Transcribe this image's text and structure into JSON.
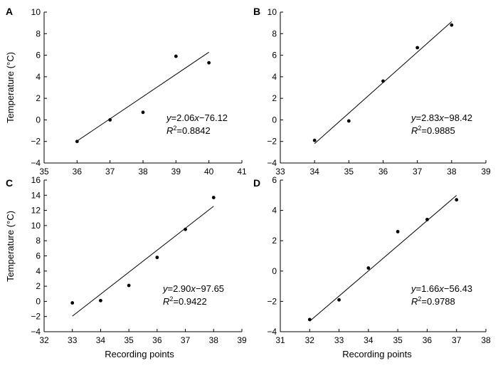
{
  "figure": {
    "ylabel": "Temperature (°C)",
    "xlabel": "Recording points"
  },
  "chart_data": [
    {
      "type": "scatter",
      "panel": "A",
      "x": [
        36,
        37,
        38,
        39,
        40
      ],
      "y": [
        -2.0,
        0.0,
        0.7,
        5.9,
        5.3
      ],
      "fit": {
        "slope": 2.06,
        "intercept": -76.12
      },
      "xlim": [
        35,
        41
      ],
      "ylim": [
        -4,
        10
      ],
      "xticks": [
        35,
        36,
        37,
        38,
        39,
        40,
        41
      ],
      "yticks": [
        -4,
        -2,
        0,
        2,
        4,
        6,
        8,
        10
      ],
      "yticklabels": [
        "−4",
        "−2",
        "0",
        "2",
        "4",
        "6",
        "8",
        "10"
      ],
      "equation": {
        "y": "y",
        "eq": "=2.06",
        "x": "x",
        "rest": "−76.12"
      },
      "r2": {
        "r": "R",
        "sup": "2",
        "val": "=0.8842"
      }
    },
    {
      "type": "scatter",
      "panel": "B",
      "x": [
        34,
        35,
        36,
        37,
        38
      ],
      "y": [
        -1.9,
        -0.1,
        3.6,
        6.7,
        8.8
      ],
      "fit": {
        "slope": 2.83,
        "intercept": -98.42
      },
      "xlim": [
        33,
        39
      ],
      "ylim": [
        -4,
        10
      ],
      "xticks": [
        33,
        34,
        35,
        36,
        37,
        38,
        39
      ],
      "yticks": [
        -4,
        -2,
        0,
        2,
        4,
        6,
        8,
        10
      ],
      "yticklabels": [
        "−4",
        "−2",
        "0",
        "2",
        "4",
        "6",
        "8",
        "10"
      ],
      "equation": {
        "y": "y",
        "eq": "=2.83",
        "x": "x",
        "rest": "−98.42"
      },
      "r2": {
        "r": "R",
        "sup": "2",
        "val": "=0.9885"
      }
    },
    {
      "type": "scatter",
      "panel": "C",
      "x": [
        33,
        34,
        35,
        36,
        37,
        38
      ],
      "y": [
        -0.2,
        0.1,
        2.1,
        5.8,
        9.5,
        13.7
      ],
      "fit": {
        "slope": 2.9,
        "intercept": -97.65
      },
      "xlim": [
        32,
        39
      ],
      "ylim": [
        -4,
        16
      ],
      "xticks": [
        32,
        33,
        34,
        35,
        36,
        37,
        38,
        39
      ],
      "yticks": [
        -4,
        -2,
        0,
        2,
        4,
        6,
        8,
        10,
        12,
        14,
        16
      ],
      "yticklabels": [
        "−4",
        "−2",
        "0",
        "2",
        "4",
        "6",
        "8",
        "10",
        "12",
        "14",
        "16"
      ],
      "equation": {
        "y": "y",
        "eq": "=2.90",
        "x": "x",
        "rest": "−97.65"
      },
      "r2": {
        "r": "R",
        "sup": "2",
        "val": "=0.9422"
      }
    },
    {
      "type": "scatter",
      "panel": "D",
      "x": [
        32,
        33,
        34,
        35,
        36,
        37
      ],
      "y": [
        -3.2,
        -1.9,
        0.2,
        2.6,
        3.4,
        4.7
      ],
      "fit": {
        "slope": 1.66,
        "intercept": -56.43
      },
      "xlim": [
        31,
        38
      ],
      "ylim": [
        -4,
        6
      ],
      "xticks": [
        31,
        32,
        33,
        34,
        35,
        36,
        37,
        38
      ],
      "yticks": [
        -4,
        -2,
        0,
        2,
        4,
        6
      ],
      "yticklabels": [
        "−4",
        "−2",
        "0",
        "2",
        "4",
        "6"
      ],
      "equation": {
        "y": "y",
        "eq": "=1.66",
        "x": "x",
        "rest": "−56.43"
      },
      "r2": {
        "r": "R",
        "sup": "2",
        "val": "=0.9788"
      }
    }
  ]
}
